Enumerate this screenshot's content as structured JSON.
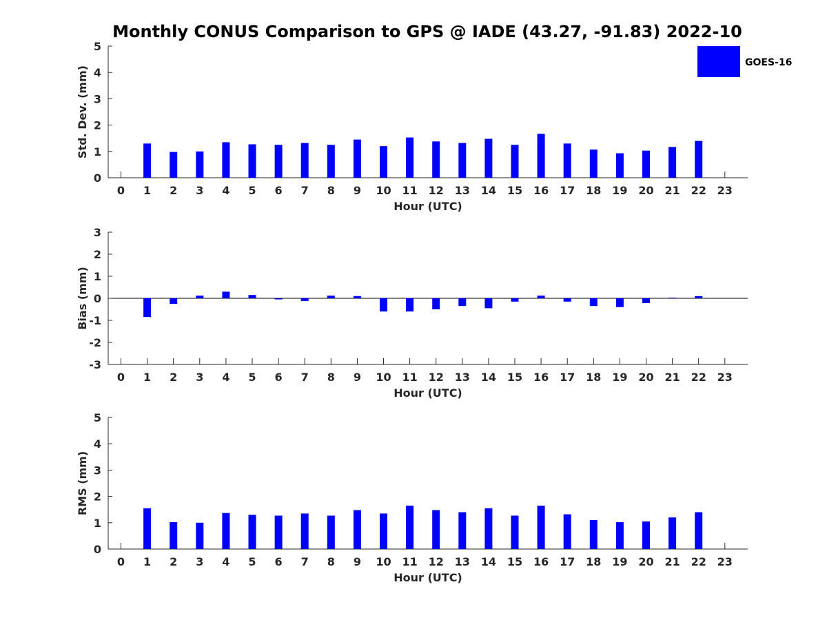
{
  "title": "Monthly CONUS Comparison to GPS @ IADE (43.27, -91.83) 2022-10",
  "legend": {
    "label": "GOES-16",
    "color": "#0000ff",
    "placement": "top-right"
  },
  "chart_data": [
    {
      "type": "bar",
      "xlabel": "Hour (UTC)",
      "ylabel": "Std. Dev. (mm)",
      "ylim": [
        0,
        5
      ],
      "yticks": [
        0,
        1,
        2,
        3,
        4,
        5
      ],
      "categories": [
        "0",
        "1",
        "2",
        "3",
        "4",
        "5",
        "6",
        "7",
        "8",
        "9",
        "10",
        "11",
        "12",
        "13",
        "14",
        "15",
        "16",
        "17",
        "18",
        "19",
        "20",
        "21",
        "22",
        "23"
      ],
      "series": [
        {
          "name": "GOES-16",
          "values": [
            null,
            1.3,
            0.98,
            1.0,
            1.35,
            1.27,
            1.25,
            1.32,
            1.25,
            1.45,
            1.2,
            1.53,
            1.38,
            1.32,
            1.48,
            1.25,
            1.67,
            1.3,
            1.07,
            0.93,
            1.03,
            1.17,
            1.4,
            null
          ]
        }
      ]
    },
    {
      "type": "bar",
      "xlabel": "Hour (UTC)",
      "ylabel": "Bias (mm)",
      "ylim": [
        -3,
        3
      ],
      "yticks": [
        -3,
        -2,
        -1,
        0,
        1,
        2,
        3
      ],
      "categories": [
        "0",
        "1",
        "2",
        "3",
        "4",
        "5",
        "6",
        "7",
        "8",
        "9",
        "10",
        "11",
        "12",
        "13",
        "14",
        "15",
        "16",
        "17",
        "18",
        "19",
        "20",
        "21",
        "22",
        "23"
      ],
      "series": [
        {
          "name": "GOES-16",
          "values": [
            null,
            -0.85,
            -0.25,
            0.12,
            0.3,
            0.15,
            -0.05,
            -0.12,
            0.12,
            0.1,
            -0.6,
            -0.6,
            -0.5,
            -0.35,
            -0.45,
            -0.15,
            0.12,
            -0.15,
            -0.35,
            -0.4,
            -0.22,
            0.03,
            0.1,
            null
          ]
        }
      ]
    },
    {
      "type": "bar",
      "xlabel": "Hour (UTC)",
      "ylabel": "RMS (mm)",
      "ylim": [
        0,
        5
      ],
      "yticks": [
        0,
        1,
        2,
        3,
        4,
        5
      ],
      "categories": [
        "0",
        "1",
        "2",
        "3",
        "4",
        "5",
        "6",
        "7",
        "8",
        "9",
        "10",
        "11",
        "12",
        "13",
        "14",
        "15",
        "16",
        "17",
        "18",
        "19",
        "20",
        "21",
        "22",
        "23"
      ],
      "series": [
        {
          "name": "GOES-16",
          "values": [
            null,
            1.55,
            1.02,
            1.0,
            1.37,
            1.3,
            1.27,
            1.35,
            1.27,
            1.48,
            1.35,
            1.65,
            1.48,
            1.4,
            1.55,
            1.27,
            1.65,
            1.32,
            1.1,
            1.02,
            1.05,
            1.2,
            1.4,
            null
          ]
        }
      ]
    }
  ]
}
